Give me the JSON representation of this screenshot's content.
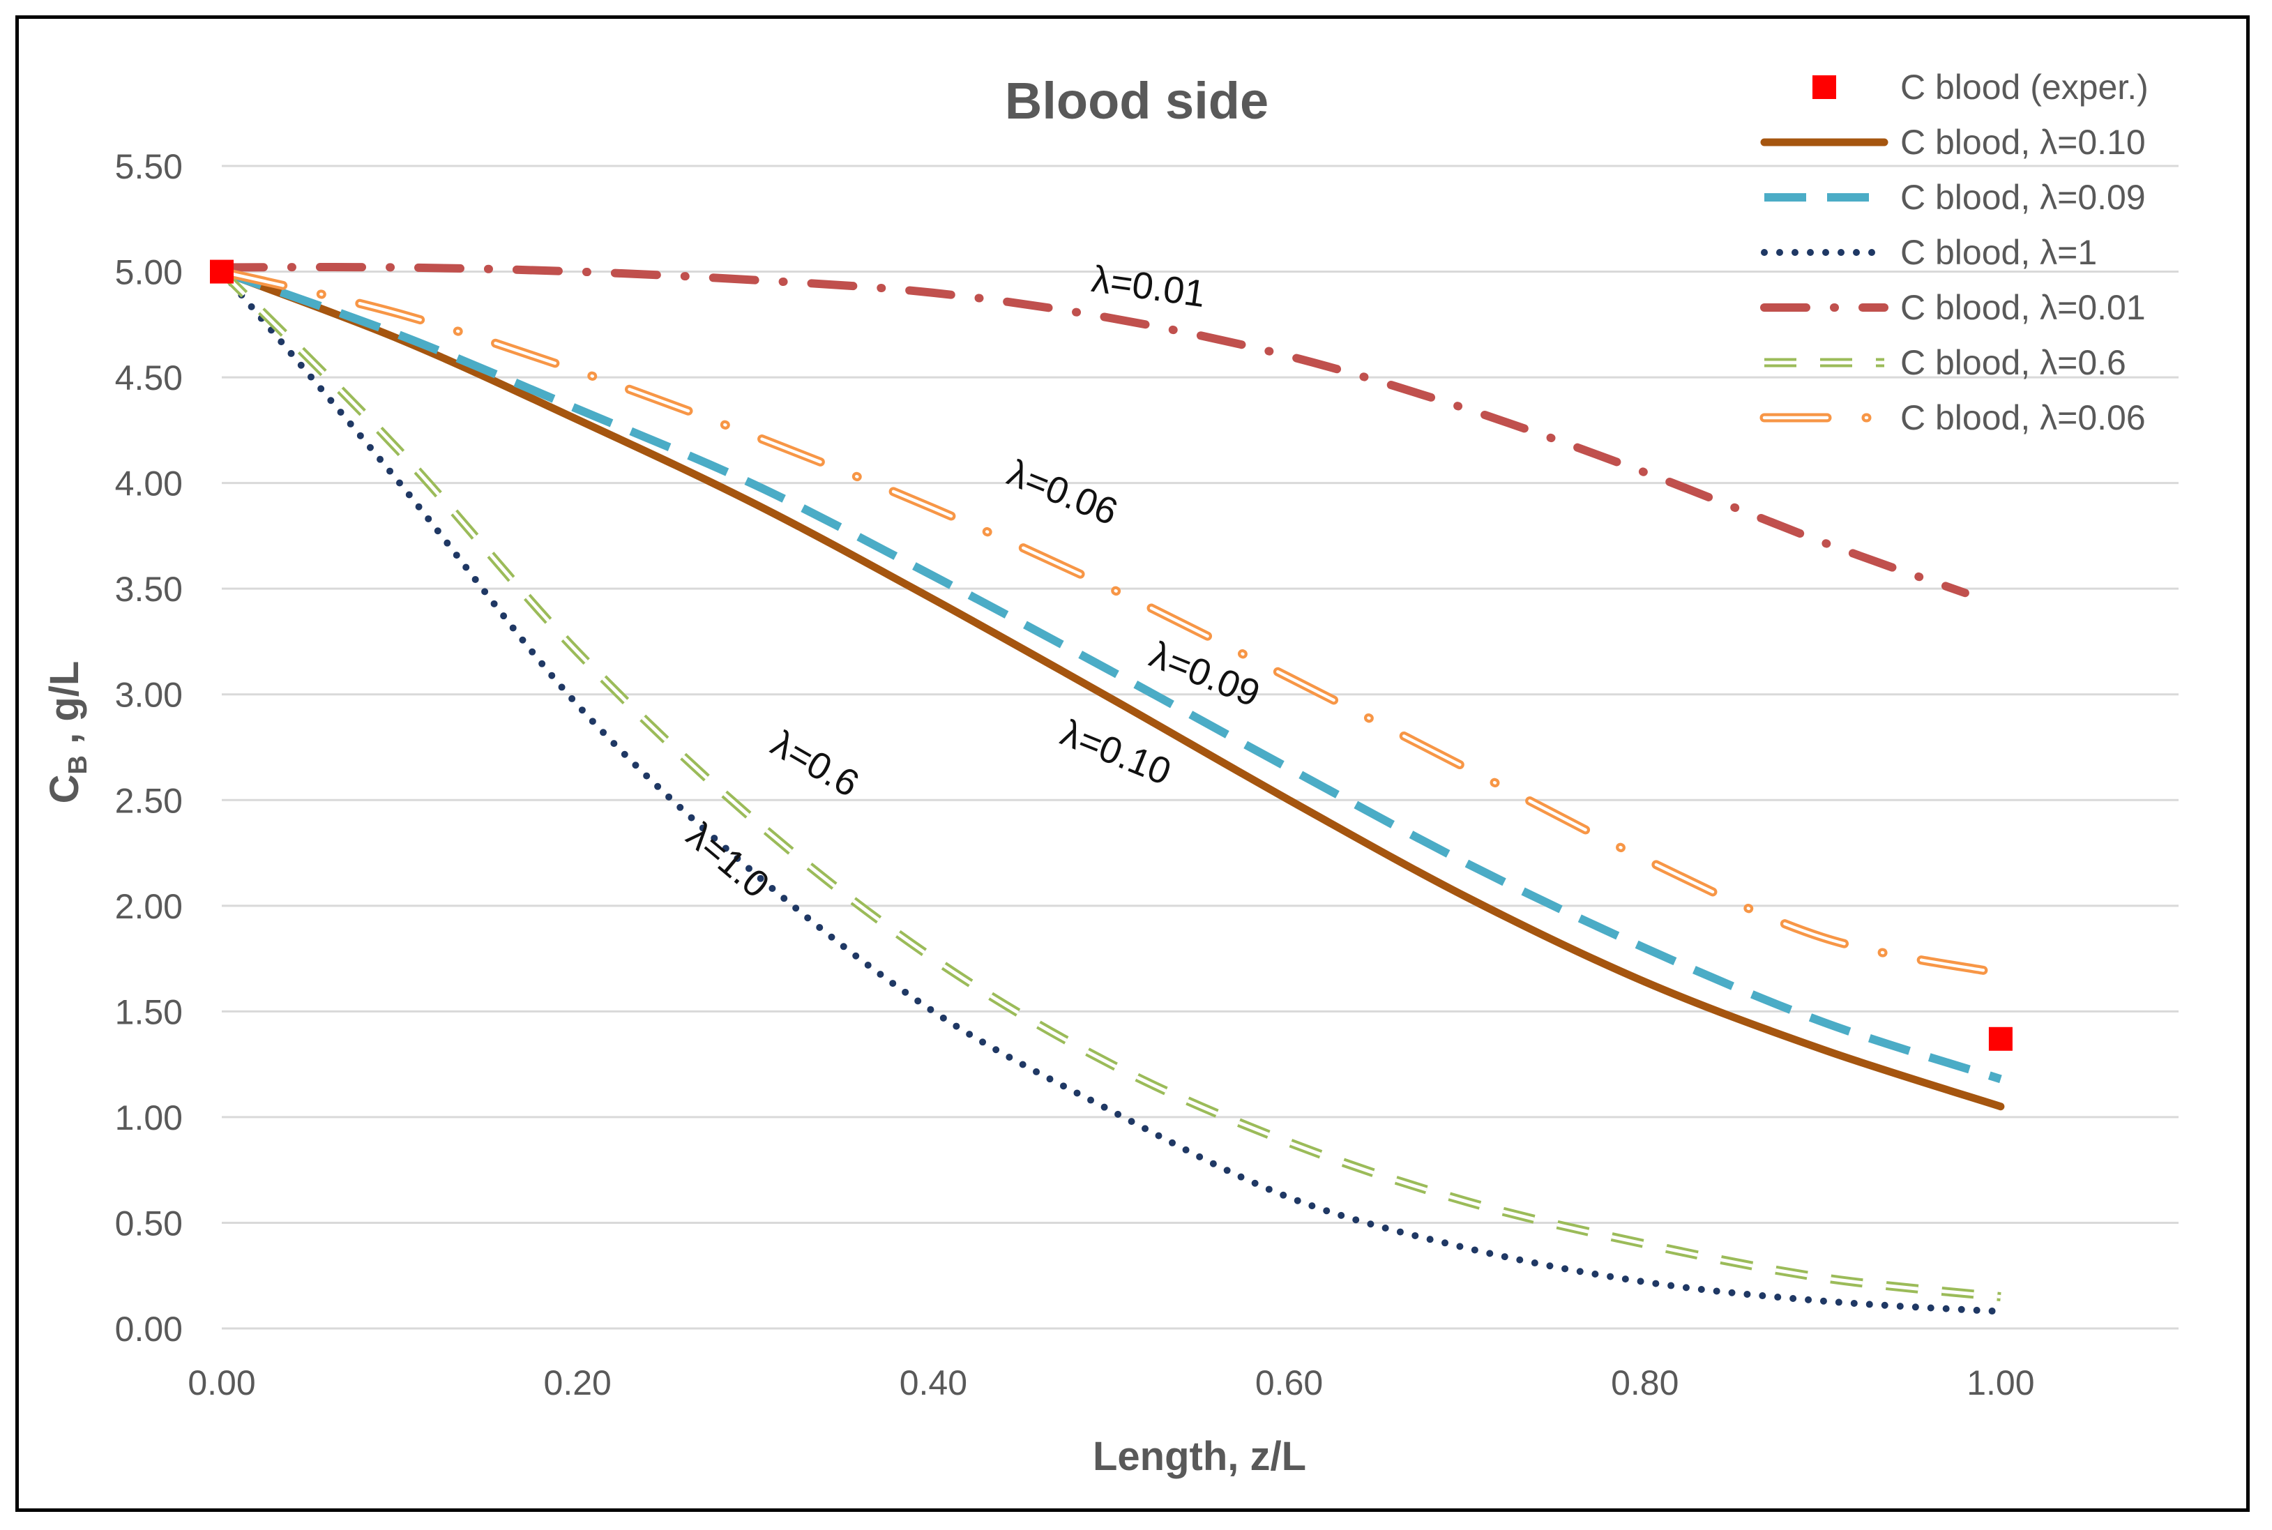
{
  "chart_data": {
    "type": "line",
    "title": "Blood side",
    "xlabel": "Length, z/L",
    "ylabel": {
      "main": "C",
      "sub": "B",
      "rest": " , g/L"
    },
    "xlim": [
      0,
      1.1
    ],
    "ylim": [
      0,
      5.5
    ],
    "xticks": [
      "0.00",
      "0.20",
      "0.40",
      "0.60",
      "0.80",
      "1.00"
    ],
    "yticks": [
      "0.00",
      "0.50",
      "1.00",
      "1.50",
      "2.00",
      "2.50",
      "3.00",
      "3.50",
      "4.00",
      "4.50",
      "5.00",
      "5.50"
    ],
    "grid": "horizontal",
    "legend_position": "top-right",
    "experimental": {
      "name": "C blood (exper.)",
      "color": "#ff0000",
      "points": [
        {
          "x": 0.0,
          "y": 5.0
        },
        {
          "x": 1.0,
          "y": 1.37
        }
      ]
    },
    "series": [
      {
        "name": "C blood, λ=0.10",
        "style": "solid",
        "color": "#a5550f",
        "x": [
          0,
          0.1,
          0.2,
          0.3,
          0.4,
          0.5,
          0.6,
          0.7,
          0.8,
          0.9,
          1.0
        ],
        "y": [
          5.0,
          4.68,
          4.3,
          3.9,
          3.45,
          2.98,
          2.5,
          2.04,
          1.64,
          1.32,
          1.05
        ]
      },
      {
        "name": "C blood, λ=0.09",
        "style": "dashed",
        "color": "#4bacc6",
        "x": [
          0,
          0.1,
          0.2,
          0.3,
          0.4,
          0.5,
          0.6,
          0.7,
          0.8,
          0.9,
          1.0
        ],
        "y": [
          5.0,
          4.7,
          4.35,
          3.99,
          3.56,
          3.11,
          2.65,
          2.2,
          1.8,
          1.45,
          1.18
        ]
      },
      {
        "name": "C blood, λ=1",
        "style": "dotted",
        "color": "#1f3864",
        "x": [
          0,
          0.1,
          0.2,
          0.3,
          0.4,
          0.5,
          0.6,
          0.7,
          0.8,
          0.9,
          1.0
        ],
        "y": [
          5.0,
          4.0,
          2.95,
          2.15,
          1.5,
          1.03,
          0.62,
          0.38,
          0.22,
          0.13,
          0.08
        ]
      },
      {
        "name": "C blood, λ=0.01",
        "style": "dashdot",
        "color": "#c0504d",
        "x": [
          0,
          0.1,
          0.2,
          0.3,
          0.4,
          0.5,
          0.6,
          0.7,
          0.8,
          0.9,
          0.98
        ],
        "y": [
          5.02,
          5.02,
          5.0,
          4.96,
          4.9,
          4.78,
          4.6,
          4.35,
          4.05,
          3.72,
          3.48
        ]
      },
      {
        "name": "C blood, λ=0.6",
        "style": "double-dashed",
        "color": "#9bbb59",
        "x": [
          0,
          0.1,
          0.2,
          0.3,
          0.4,
          0.5,
          0.6,
          0.7,
          0.8,
          0.9,
          1.0
        ],
        "y": [
          5.0,
          4.15,
          3.2,
          2.4,
          1.75,
          1.25,
          0.88,
          0.6,
          0.4,
          0.24,
          0.15
        ]
      },
      {
        "name": "C blood, λ=0.06",
        "style": "double-dashdot",
        "color": "#f79646",
        "x": [
          0,
          0.1,
          0.2,
          0.3,
          0.4,
          0.5,
          0.6,
          0.7,
          0.8,
          0.9,
          1.0
        ],
        "y": [
          5.0,
          4.8,
          4.53,
          4.22,
          3.88,
          3.5,
          3.08,
          2.65,
          2.22,
          1.85,
          1.68
        ]
      }
    ],
    "annotations": [
      {
        "text": "λ=0.01",
        "x": 0.52,
        "y": 4.87,
        "rotate": 8
      },
      {
        "text": "λ=0.06",
        "x": 0.47,
        "y": 3.9,
        "rotate": 22
      },
      {
        "text": "λ=0.09",
        "x": 0.55,
        "y": 3.04,
        "rotate": 22
      },
      {
        "text": "λ=0.10",
        "x": 0.5,
        "y": 2.67,
        "rotate": 22
      },
      {
        "text": "λ=0.6",
        "x": 0.33,
        "y": 2.62,
        "rotate": 30
      },
      {
        "text": "λ=1.0",
        "x": 0.28,
        "y": 2.17,
        "rotate": 40
      }
    ]
  }
}
